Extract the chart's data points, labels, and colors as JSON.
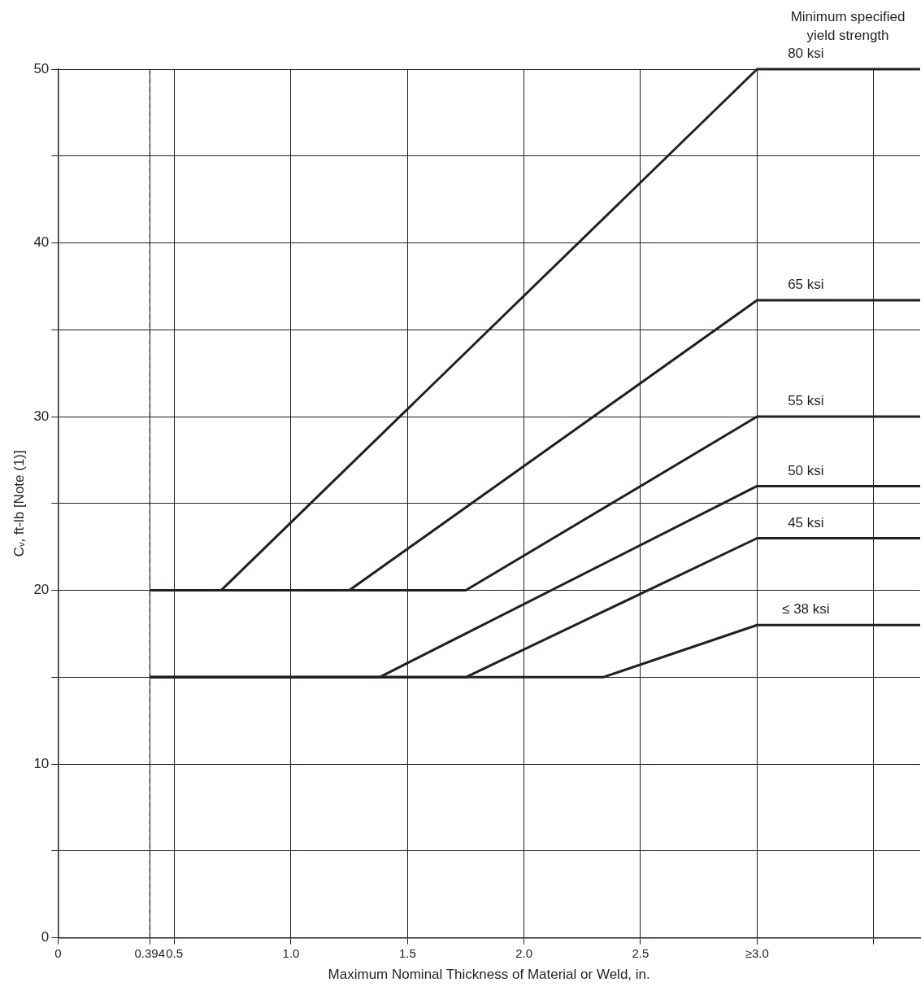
{
  "chart_data": {
    "type": "line",
    "xlabel": "Maximum Nominal Thickness of Material or Weld, in.",
    "ylabel": "Cᵥ, ft-lb [Note (1)]",
    "annotations": [
      "Minimum specified\nyield strength"
    ],
    "xlim": [
      0,
      3.7
    ],
    "xticks": [
      0,
      0.394,
      0.5,
      {
        "value": 1,
        "label": "1.0"
      },
      1.5,
      {
        "value": 2,
        "label": "2.0"
      },
      2.5,
      {
        "value": 3,
        "label": "≥3.0"
      },
      {
        "value": 3.5,
        "label": null
      }
    ],
    "ylim": [
      0,
      50
    ],
    "yticks": [
      0,
      {
        "value": 5,
        "label": null
      },
      10,
      {
        "value": 15,
        "label": null
      },
      20,
      {
        "value": 25,
        "label": null
      },
      30,
      {
        "value": 35,
        "label": null
      },
      40,
      {
        "value": 45,
        "label": null
      },
      50
    ],
    "grid": true,
    "legend": false,
    "marker": "none",
    "line_style": "solid",
    "ref_lines": [
      {
        "axis": "x",
        "value": 0.394,
        "label": null,
        "color": "#231f20",
        "line_style": "dashed"
      }
    ],
    "series": [
      {
        "name": "80 ksi",
        "color": "#231f20",
        "x": [
          0.394,
          0.7,
          3.0,
          3.7
        ],
        "values": [
          20,
          20,
          50,
          50
        ]
      },
      {
        "name": "65 ksi",
        "color": "#231f20",
        "x": [
          0.394,
          1.25,
          3.0,
          3.7
        ],
        "values": [
          20,
          20,
          36.7,
          36.7
        ]
      },
      {
        "name": "55 ksi",
        "color": "#231f20",
        "x": [
          0.394,
          1.75,
          3.0,
          3.7
        ],
        "values": [
          20,
          20,
          30,
          30
        ]
      },
      {
        "name": "50 ksi",
        "color": "#231f20",
        "x": [
          0.394,
          1.38,
          3.0,
          3.7
        ],
        "values": [
          15,
          15,
          26,
          26
        ]
      },
      {
        "name": "45 ksi",
        "color": "#231f20",
        "x": [
          0.394,
          1.75,
          3.0,
          3.7
        ],
        "values": [
          15,
          15,
          23,
          23
        ]
      },
      {
        "name": "≤ 38 ksi",
        "color": "#231f20",
        "x": [
          0.394,
          2.34,
          3.0,
          3.7
        ],
        "values": [
          15,
          15,
          18,
          18
        ]
      }
    ]
  }
}
